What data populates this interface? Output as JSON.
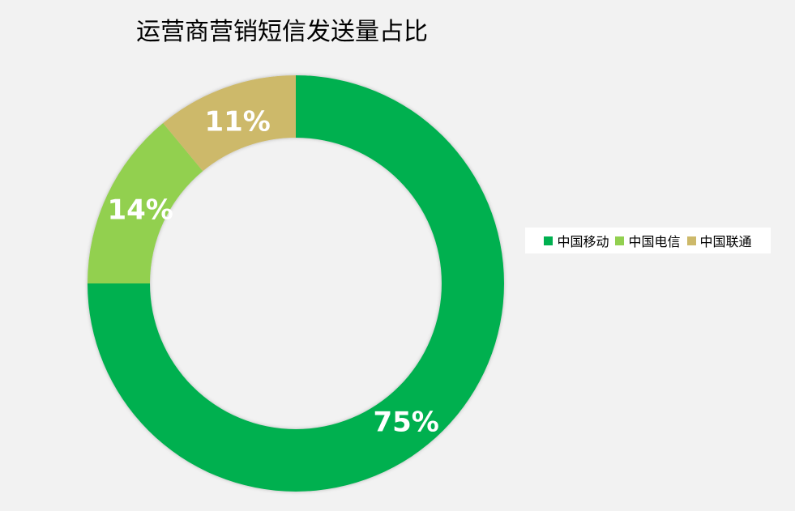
{
  "chart_data": {
    "type": "pie",
    "variant": "donut",
    "title": "运营商营销短信发送量占比",
    "categories": [
      "中国移动",
      "中国电信",
      "中国联通"
    ],
    "values": [
      75,
      14,
      11
    ],
    "labels": [
      "75%",
      "14%",
      "11%"
    ],
    "colors": [
      "#00b050",
      "#92d050",
      "#cdb96a"
    ],
    "legend": "right"
  }
}
